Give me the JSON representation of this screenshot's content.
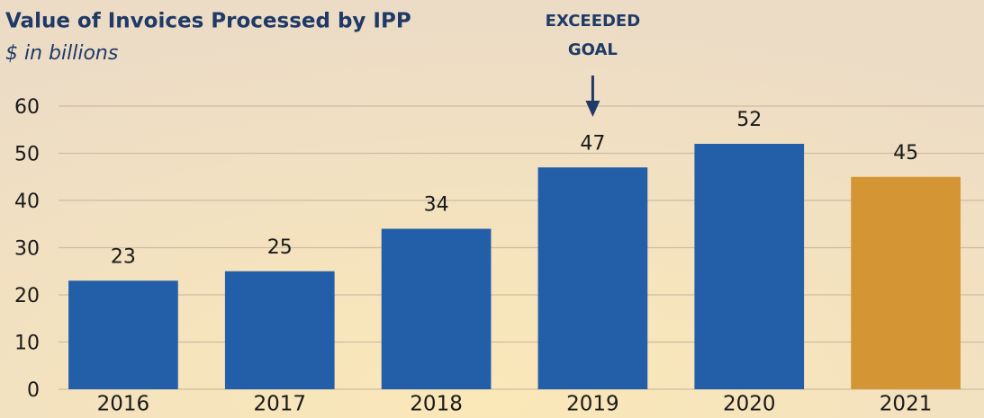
{
  "chart_data": {
    "type": "bar",
    "title": "Value of Invoices Processed by IPP",
    "subtitle": "$ in billions",
    "categories": [
      "2016",
      "2017",
      "2018",
      "2019",
      "2020",
      "2021"
    ],
    "values": [
      23,
      25,
      34,
      47,
      52,
      45
    ],
    "colors": [
      "#235ea8",
      "#235ea8",
      "#235ea8",
      "#235ea8",
      "#235ea8",
      "#d49535"
    ],
    "ylim": [
      0,
      60
    ],
    "yticks": [
      0,
      10,
      20,
      30,
      40,
      50,
      60
    ],
    "grid": true,
    "annotation": {
      "text": [
        "EXCEEDED",
        "GOAL"
      ],
      "x": "2019"
    }
  }
}
